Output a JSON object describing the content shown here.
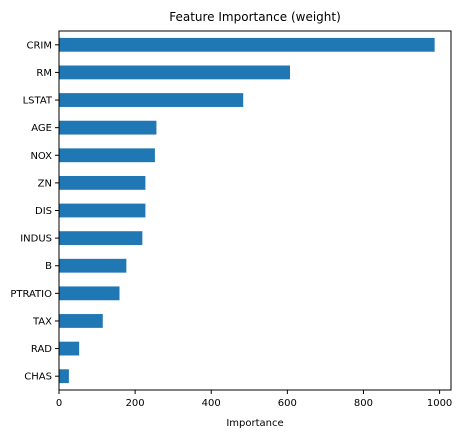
{
  "chart_data": {
    "type": "bar",
    "orientation": "horizontal",
    "title": "Feature Importance (weight)",
    "xlabel": "Importance",
    "ylabel": "",
    "categories": [
      "CRIM",
      "RM",
      "LSTAT",
      "AGE",
      "NOX",
      "ZN",
      "DIS",
      "INDUS",
      "B",
      "PTRATIO",
      "TAX",
      "RAD",
      "CHAS"
    ],
    "values": [
      987,
      607,
      484,
      256,
      252,
      227,
      227,
      219,
      177,
      159,
      115,
      53,
      26
    ],
    "xlim": [
      0,
      1030
    ],
    "xticks": [
      0,
      200,
      400,
      600,
      800,
      1000
    ],
    "grid": false,
    "legend": "none",
    "bar_color": "#1f77b4"
  }
}
